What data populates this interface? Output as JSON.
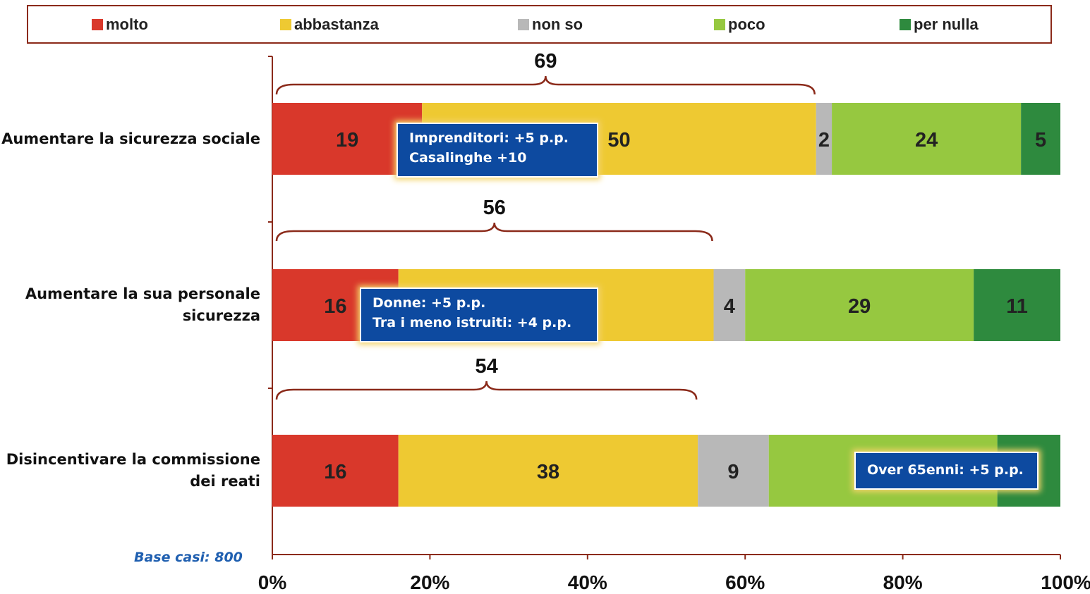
{
  "legend": [
    {
      "label": "molto",
      "color": "#d9382b"
    },
    {
      "label": "abbastanza",
      "color": "#eec932"
    },
    {
      "label": "non so",
      "color": "#b8b8b8"
    },
    {
      "label": "poco",
      "color": "#96c840"
    },
    {
      "label": "per nulla",
      "color": "#2e8a3e"
    }
  ],
  "chart_data": {
    "type": "bar",
    "orientation": "horizontal",
    "stacked": true,
    "categories": [
      "Aumentare la sicurezza sociale",
      "Aumentare la sua personale sicurezza",
      "Disincentivare la commissione dei reati"
    ],
    "category_lines": [
      [
        "Aumentare la sicurezza sociale"
      ],
      [
        "Aumentare la sua personale",
        "sicurezza"
      ],
      [
        "Disincentivare la commissione",
        "dei reati"
      ]
    ],
    "series": [
      {
        "name": "molto",
        "values": [
          19,
          16,
          16
        ]
      },
      {
        "name": "abbastanza",
        "values": [
          50,
          40,
          38
        ]
      },
      {
        "name": "non so",
        "values": [
          2,
          4,
          9
        ]
      },
      {
        "name": "poco",
        "values": [
          24,
          29,
          29
        ]
      },
      {
        "name": "per nulla",
        "values": [
          5,
          11,
          8
        ]
      }
    ],
    "data_labels": [
      [
        "19",
        "50",
        "2",
        "24",
        "5"
      ],
      [
        "16",
        "",
        "4",
        "29",
        "11"
      ],
      [
        "16",
        "38",
        "9",
        "",
        ""
      ]
    ],
    "brace_totals": [
      69,
      56,
      54
    ],
    "x_ticks": [
      "0%",
      "20%",
      "40%",
      "60%",
      "80%",
      "100%"
    ],
    "xlim": [
      0,
      100
    ],
    "grid": false,
    "legend_position": "top"
  },
  "annotations": [
    {
      "lines": [
        "Imprenditori: +5 p.p.",
        "Casalinghe +10"
      ]
    },
    {
      "lines": [
        "Donne: +5 p.p.",
        "Tra i meno istruiti: +4 p.p."
      ]
    },
    {
      "lines": [
        "Over 65enni: +5 p.p."
      ]
    }
  ],
  "base_note": "Base casi: 800"
}
